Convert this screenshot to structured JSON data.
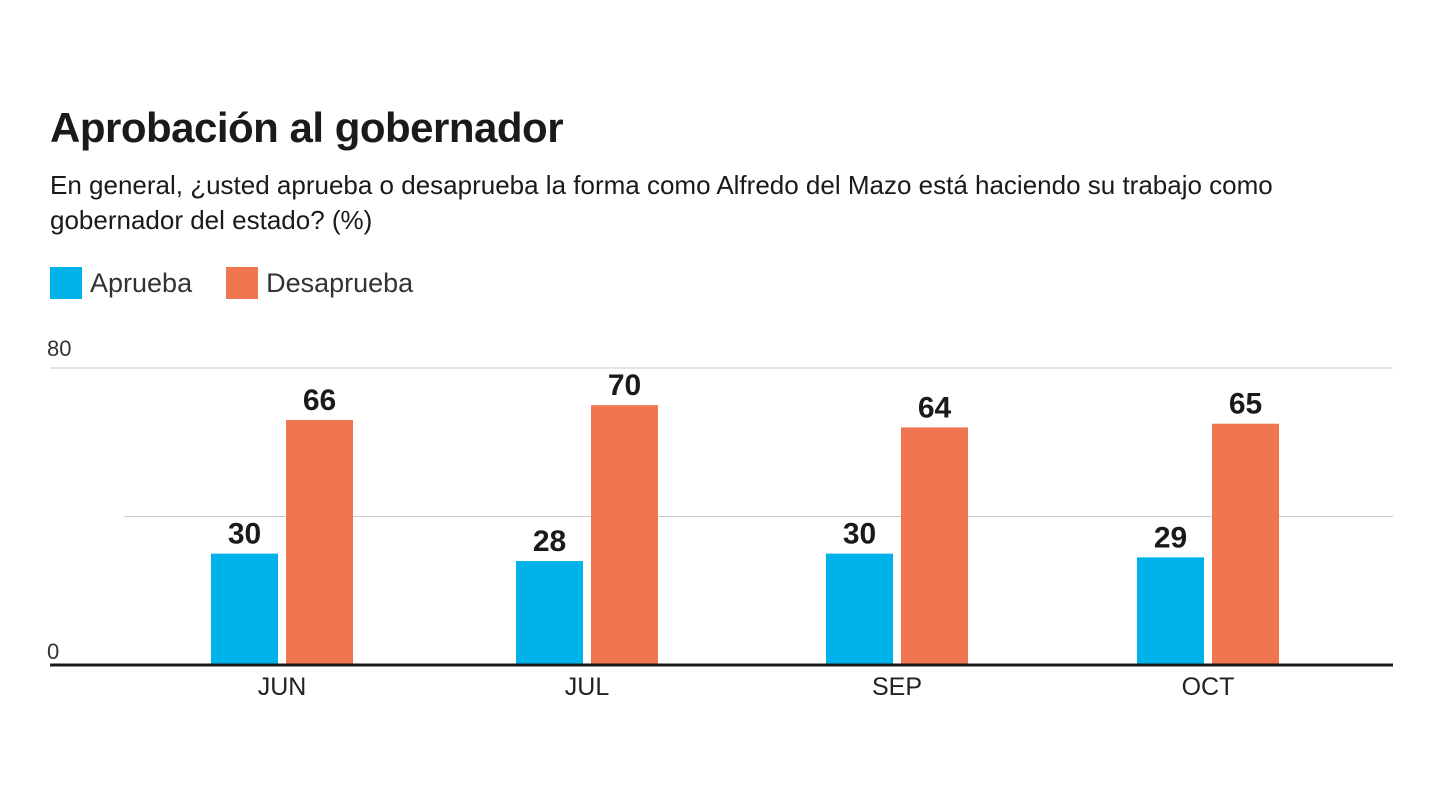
{
  "header": {
    "title": "Aprobación al gobernador",
    "subtitle": "En general, ¿usted aprueba o desaprueba la forma como Alfredo del Mazo está haciendo su trabajo como gobernador del estado?  (%)"
  },
  "chart_data": {
    "type": "bar",
    "title": "Aprobación al gobernador",
    "subtitle": "En general, ¿usted aprueba o desaprueba la forma como Alfredo del Mazo está haciendo su trabajo como gobernador del estado?  (%)",
    "xlabel": "",
    "ylabel": "",
    "categories": [
      "JUN",
      "JUL",
      "SEP",
      "OCT"
    ],
    "series": [
      {
        "name": "Aprueba",
        "color": "#00b2ea",
        "values": [
          30,
          28,
          30,
          29
        ]
      },
      {
        "name": "Desaprueba",
        "color": "#ef7650",
        "values": [
          66,
          70,
          64,
          65
        ]
      }
    ],
    "ylim": [
      0,
      80
    ],
    "yticks": [
      0,
      40,
      80
    ],
    "ytick_labels": [
      "0",
      "",
      "80"
    ],
    "grid": true,
    "legend": "top-left",
    "data_labels": true
  }
}
